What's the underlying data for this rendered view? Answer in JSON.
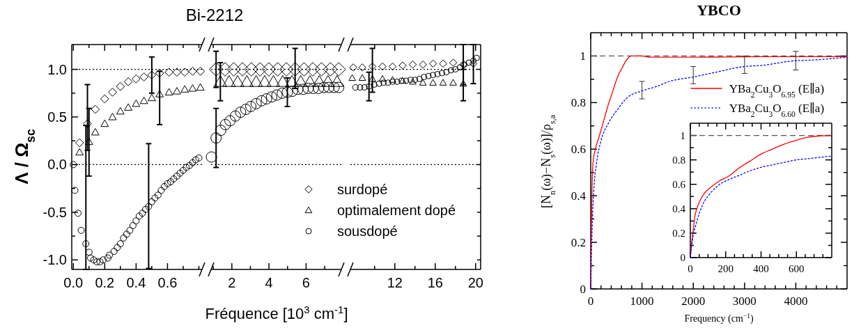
{
  "chart_data": [
    {
      "type": "scatter",
      "title": "Bi-2212",
      "xlabel": "Fréquence  [10$^{3}$ cm$^{-1}$]",
      "ylabel": "Λ / Ω$_{sc}$",
      "xlim": [
        -0.01,
        0.82
      ],
      "xticks": [
        {
          "value": 0,
          "label": "0.0"
        },
        {
          "value": 0.1,
          "label": null
        },
        {
          "value": 0.2,
          "label": "0.2"
        },
        {
          "value": 0.3,
          "label": null
        },
        {
          "value": 0.4,
          "label": "0.4"
        },
        {
          "value": 0.5,
          "label": null
        },
        {
          "value": 0.6,
          "label": "0.6"
        },
        {
          "value": 0.7,
          "label": null
        },
        {
          "value": 0.8,
          "label": null
        }
      ],
      "ylim": [
        -1.1,
        1.26
      ],
      "yticks": [
        {
          "value": -1,
          "label": "-1.0"
        },
        {
          "value": -0.75,
          "label": null
        },
        {
          "value": -0.5,
          "label": "-0.5"
        },
        {
          "value": -0.25,
          "label": null
        },
        {
          "value": 0,
          "label": "0.0"
        },
        {
          "value": 0.25,
          "label": null
        },
        {
          "value": 0.5,
          "label": "0.5"
        },
        {
          "value": 0.75,
          "label": null
        },
        {
          "value": 1,
          "label": "1.0"
        }
      ],
      "ref_lines": [
        {
          "axis": "y",
          "value": 1,
          "color": "#000000",
          "line_style": "dotted"
        },
        {
          "axis": "y",
          "value": 0,
          "color": "#000000",
          "line_style": "dotted"
        }
      ],
      "series": [
        {
          "color": "#000000",
          "marker": "diamond",
          "x": [
            0.04,
            0.09,
            0.14,
            0.2,
            0.25,
            0.3,
            0.35,
            0.4,
            0.45,
            0.5,
            0.55,
            0.61,
            0.66,
            0.71,
            0.76,
            0.81
          ],
          "values": [
            0.23,
            0.43,
            0.58,
            0.69,
            0.76,
            0.82,
            0.87,
            0.9,
            0.92,
            0.94,
            0.96,
            0.97,
            0.97,
            0.97,
            0.98,
            0.98
          ],
          "errors": [
            null,
            [
              0.15,
              0.84
            ],
            null,
            null,
            null,
            null,
            null,
            null,
            null,
            [
              0.75,
              1.13
            ],
            null,
            null,
            null,
            null,
            null,
            null
          ]
        },
        {
          "color": "#000000",
          "marker": "triangle",
          "x": [
            0.04,
            0.1,
            0.14,
            0.2,
            0.25,
            0.3,
            0.35,
            0.4,
            0.45,
            0.5,
            0.55,
            0.61,
            0.66,
            0.71,
            0.76,
            0.81
          ],
          "values": [
            0.13,
            0.24,
            0.34,
            0.43,
            0.5,
            0.56,
            0.6,
            0.64,
            0.67,
            0.7,
            0.74,
            0.76,
            0.77,
            0.79,
            0.8,
            0.81
          ],
          "errors": [
            null,
            [
              -0.12,
              0.59
            ],
            null,
            null,
            null,
            null,
            null,
            null,
            null,
            null,
            [
              0.42,
              0.98
            ],
            null,
            null,
            null,
            null,
            null
          ]
        },
        {
          "color": "#000000",
          "marker": "circle",
          "x": [
            0,
            0.01,
            0.03,
            0.05,
            0.08,
            0.1,
            0.11,
            0.13,
            0.15,
            0.17,
            0.19,
            0.22,
            0.23,
            0.26,
            0.28,
            0.3,
            0.32,
            0.34,
            0.36,
            0.38,
            0.4,
            0.42,
            0.44,
            0.46,
            0.48,
            0.5,
            0.52,
            0.54,
            0.56,
            0.58,
            0.6,
            0.62,
            0.64,
            0.66,
            0.68,
            0.7,
            0.72,
            0.74,
            0.76,
            0.78,
            0.8
          ],
          "values": [
            0,
            -0.27,
            -0.51,
            -0.69,
            -0.83,
            -0.92,
            -0.98,
            -1.0,
            -1.02,
            -1.02,
            -1.0,
            -0.98,
            -0.95,
            -0.91,
            -0.87,
            -0.83,
            -0.77,
            -0.73,
            -0.69,
            -0.64,
            -0.59,
            -0.54,
            -0.51,
            -0.47,
            -0.44,
            -0.39,
            -0.35,
            -0.32,
            -0.27,
            -0.23,
            -0.2,
            -0.18,
            -0.15,
            -0.12,
            -0.09,
            -0.06,
            -0.03,
            -0.01,
            0.02,
            0.05,
            0.07
          ],
          "errors": [
            null,
            null,
            null,
            null,
            [
              -1.1,
              0.41
            ],
            null,
            null,
            null,
            null,
            null,
            null,
            null,
            null,
            null,
            null,
            null,
            null,
            null,
            null,
            null,
            null,
            null,
            null,
            null,
            [
              -1.09,
              0.22
            ],
            null,
            null,
            null,
            null,
            null,
            null,
            null,
            null,
            null,
            null,
            null,
            null,
            null,
            null,
            null,
            null
          ]
        }
      ]
    },
    {
      "type": "scatter",
      "tick_labels": "x",
      "legend": "bottom right",
      "xlim": [
        0.88,
        7.9
      ],
      "xticks": [
        {
          "value": 1,
          "label": null
        },
        2,
        {
          "value": 3,
          "label": null
        },
        4,
        {
          "value": 5,
          "label": null
        },
        6,
        {
          "value": 7,
          "label": null
        }
      ],
      "ylim": [
        -1.1,
        1.26
      ],
      "ref_lines": [
        {
          "axis": "y",
          "value": 1,
          "color": "#000000",
          "line_style": "dotted"
        },
        {
          "axis": "y",
          "value": 0,
          "color": "#000000",
          "line_style": "dotted"
        }
      ],
      "series": [
        {
          "name": "surdopé",
          "color": "#000000",
          "marker": "diamond",
          "x": [
            1.15,
            1.63,
            2.1,
            2.57,
            3.05,
            3.52,
            3.99,
            4.47,
            4.94,
            5.41,
            5.89,
            6.36,
            6.83,
            7.31,
            7.76
          ],
          "values": [
            1.0,
            1.0,
            1.0,
            1.0,
            1.0,
            1.0,
            1.0,
            1.0,
            1.0,
            1.0,
            1.0,
            1.0,
            1.0,
            1.0,
            1.0
          ],
          "errors": [
            0.19,
            null,
            null,
            null,
            null,
            null,
            null,
            null,
            null,
            [
              0.8,
              1.22
            ],
            null,
            null,
            null,
            null,
            null
          ]
        },
        {
          "name": "optimalement dopé",
          "color": "#000000",
          "marker": "triangle",
          "x": [
            1.38,
            1.85,
            2.31,
            2.81,
            3.31,
            3.77,
            4.24,
            4.74,
            5.24,
            5.71,
            6.21,
            6.71,
            7.18,
            7.67
          ],
          "values": [
            0.87,
            0.87,
            0.87,
            0.87,
            0.87,
            0.87,
            0.87,
            0.87,
            0.87,
            0.87,
            0.87,
            0.87,
            0.87,
            0.87
          ],
          "errors": [
            [
              0.67,
              1.07
            ],
            null,
            null,
            null,
            null,
            null,
            null,
            null,
            null,
            null,
            null,
            null,
            null,
            null
          ]
        },
        {
          "name": "sousdopé",
          "color": "#000000",
          "marker": "circle",
          "x": [
            0.9,
            1.15,
            1.4,
            1.65,
            1.9,
            2.19,
            2.47,
            2.75,
            3.02,
            3.31,
            3.6,
            3.87,
            4.14,
            4.43,
            4.72,
            4.99,
            5.26,
            5.55,
            5.84,
            6.11,
            6.39,
            6.67,
            6.96,
            7.23,
            7.51,
            7.76
          ],
          "values": [
            0.08,
            0.28,
            0.36,
            0.42,
            0.46,
            0.51,
            0.55,
            0.58,
            0.61,
            0.64,
            0.67,
            0.69,
            0.71,
            0.73,
            0.75,
            0.76,
            0.77,
            0.79,
            0.79,
            0.8,
            0.8,
            0.8,
            0.81,
            0.81,
            0.81,
            0.81
          ],
          "errors": [
            null,
            0.31,
            null,
            null,
            null,
            null,
            null,
            null,
            null,
            null,
            null,
            null,
            null,
            null,
            null,
            0.15,
            null,
            null,
            null,
            null,
            null,
            null,
            null,
            null,
            null,
            null
          ]
        }
      ]
    },
    {
      "type": "scatter",
      "tick_labels": "x",
      "xlim": [
        7.6,
        20.5
      ],
      "xticks": [
        {
          "value": 10,
          "label": null
        },
        12,
        {
          "value": 14,
          "label": null
        },
        16,
        {
          "value": 18,
          "label": null
        },
        20
      ],
      "ylim": [
        -1.1,
        1.26
      ],
      "yticks": [
        {
          "value": -1,
          "label": null
        },
        {
          "value": -0.75,
          "label": null
        },
        {
          "value": -0.5,
          "label": null
        },
        {
          "value": -0.25,
          "label": null
        },
        {
          "value": 0,
          "label": null
        },
        {
          "value": 0.25,
          "label": null
        },
        {
          "value": 0.5,
          "label": null
        },
        {
          "value": 0.75,
          "label": null
        },
        {
          "value": 1,
          "label": null
        }
      ],
      "ref_lines": [
        {
          "axis": "y",
          "value": 1,
          "color": "#000000",
          "line_style": "dotted"
        },
        {
          "axis": "y",
          "value": 0,
          "color": "#000000",
          "line_style": "dotted"
        }
      ],
      "series": [
        {
          "color": "#000000",
          "marker": "diamond",
          "x": [
            7.89,
            8.78,
            9.78,
            10.78,
            11.78,
            12.78,
            13.78,
            14.78,
            15.78,
            16.78,
            17.78,
            18.78,
            19.78
          ],
          "values": [
            1.02,
            1.02,
            1.03,
            1.03,
            1.03,
            1.04,
            1.05,
            1.05,
            1.06,
            1.06,
            1.07,
            1.05,
            1.06
          ],
          "errors": [
            null,
            null,
            [
              0.76,
              1.22
            ],
            null,
            null,
            null,
            null,
            null,
            null,
            null,
            null,
            0.21,
            null
          ]
        },
        {
          "color": "#000000",
          "marker": "triangle",
          "x": [
            7.78,
            8.78,
            9.78,
            10.78,
            11.78,
            12.78,
            13.78,
            14.78,
            15.78,
            16.78,
            17.78,
            18.78
          ],
          "values": [
            0.91,
            0.91,
            0.9,
            0.9,
            0.89,
            0.88,
            0.87,
            0.86,
            0.86,
            0.86,
            0.86,
            0.85
          ],
          "errors": [
            null,
            null,
            null,
            null,
            null,
            null,
            null,
            null,
            null,
            null,
            null,
            [
              0.67,
              1.0
            ]
          ]
        },
        {
          "color": "#000000",
          "marker": "circle",
          "x": [
            8.11,
            8.56,
            9.0,
            9.44,
            9.96,
            10.44,
            10.89,
            11.33,
            11.78,
            12.22,
            12.67,
            13.11,
            13.56,
            14.0,
            14.44,
            14.89,
            15.33,
            15.78,
            16.22,
            16.67,
            17.11,
            17.56,
            18.0,
            18.44,
            18.89,
            19.33,
            19.78,
            20.11
          ],
          "values": [
            0.81,
            0.81,
            0.81,
            0.82,
            0.84,
            0.85,
            0.86,
            0.86,
            0.87,
            0.87,
            0.88,
            0.88,
            0.89,
            0.89,
            0.9,
            0.92,
            0.93,
            0.94,
            0.95,
            0.96,
            0.97,
            0.99,
            1.0,
            1.02,
            1.05,
            1.07,
            1.09,
            1.12
          ],
          "errors": [
            null,
            null,
            null,
            0.15,
            null,
            null,
            null,
            null,
            null,
            null,
            null,
            null,
            null,
            null,
            null,
            null,
            null,
            null,
            null,
            null,
            null,
            null,
            null,
            null,
            null,
            null,
            [
              0.85,
              1.26
            ],
            null
          ]
        }
      ]
    },
    {
      "type": "line",
      "title": "YBCO",
      "xlabel": "Frequency (cm$^{−1}$)",
      "ylabel": "[N$_{n}$(ω)−N$_{s}$(ω)]/ρ$_{s,a}$",
      "legend": "top right",
      "xlim": [
        0,
        5000
      ],
      "xticks": [
        0,
        {
          "value": 200,
          "label": null
        },
        {
          "value": 400,
          "label": null
        },
        {
          "value": 600,
          "label": null
        },
        {
          "value": 800,
          "label": null
        },
        1000,
        {
          "value": 1200,
          "label": null
        },
        {
          "value": 1400,
          "label": null
        },
        {
          "value": 1600,
          "label": null
        },
        {
          "value": 1800,
          "label": null
        },
        2000,
        {
          "value": 2200,
          "label": null
        },
        {
          "value": 2400,
          "label": null
        },
        {
          "value": 2600,
          "label": null
        },
        {
          "value": 2800,
          "label": null
        },
        3000,
        {
          "value": 3200,
          "label": null
        },
        {
          "value": 3400,
          "label": null
        },
        {
          "value": 3600,
          "label": null
        },
        {
          "value": 3800,
          "label": null
        },
        4000,
        {
          "value": 4200,
          "label": null
        },
        {
          "value": 4400,
          "label": null
        },
        {
          "value": 4600,
          "label": null
        },
        {
          "value": 4800,
          "label": null
        }
      ],
      "ylim": [
        0,
        1.1
      ],
      "yticks": [
        0,
        {
          "value": 0.1,
          "label": null
        },
        0.2,
        {
          "value": 0.3,
          "label": null
        },
        0.4,
        {
          "value": 0.5,
          "label": null
        },
        0.6,
        {
          "value": 0.7,
          "label": null
        },
        0.8,
        {
          "value": 0.9,
          "label": null
        },
        1
      ],
      "ref_lines": [
        {
          "axis": "y",
          "value": 1,
          "color": "#555555",
          "line_style": "dashed"
        }
      ],
      "series": [
        {
          "name": "YBa$_{2}$Cu$_{3}$O$_{6.95}$ (E∥a)",
          "color": "#ff0000",
          "line_style": "solid",
          "marker": "none",
          "x": [
            0,
            9,
            23,
            45,
            91,
            159,
            250,
            341,
            432,
            523,
            614,
            705,
            795,
            1000,
            1159,
            1977,
            3341,
            5000
          ],
          "values": [
            0,
            0.19,
            0.4,
            0.54,
            0.6,
            0.65,
            0.72,
            0.79,
            0.85,
            0.91,
            0.95,
            0.985,
            1.0,
            1.0,
            0.995,
            0.995,
            0.997,
            0.997
          ]
        },
        {
          "name": "YBa$_{2}$Cu$_{3}$O$_{6.60}$ (E∥a)",
          "color": "#0000ff",
          "line_style": "dotted",
          "marker": "none",
          "x": [
            0,
            14,
            32,
            59,
            114,
            205,
            341,
            523,
            705,
            1000,
            1295,
            1523,
            2000,
            2432,
            3000,
            3341,
            4000,
            4250,
            5000
          ],
          "values": [
            0,
            0.14,
            0.29,
            0.42,
            0.54,
            0.64,
            0.71,
            0.77,
            0.82,
            0.85,
            0.87,
            0.89,
            0.91,
            0.93,
            0.955,
            0.96,
            0.98,
            0.982,
            0.995
          ],
          "errors": [
            null,
            null,
            null,
            null,
            null,
            null,
            null,
            null,
            null,
            [
              0.816,
              0.891
            ],
            null,
            null,
            [
              0.881,
              0.955
            ],
            null,
            [
              0.925,
              1.0
            ],
            null,
            [
              0.94,
              1.02
            ],
            null,
            null
          ]
        }
      ]
    },
    {
      "type": "line",
      "xlim": [
        0,
        800
      ],
      "xticks": [
        0,
        {
          "value": 50,
          "label": null
        },
        {
          "value": 100,
          "label": null
        },
        {
          "value": 150,
          "label": null
        },
        200,
        {
          "value": 250,
          "label": null
        },
        {
          "value": 300,
          "label": null
        },
        {
          "value": 350,
          "label": null
        },
        400,
        {
          "value": 450,
          "label": null
        },
        {
          "value": 500,
          "label": null
        },
        {
          "value": 550,
          "label": null
        },
        600,
        {
          "value": 650,
          "label": null
        },
        {
          "value": 700,
          "label": null
        },
        {
          "value": 750,
          "label": null
        }
      ],
      "ylim": [
        0,
        1.1
      ],
      "yticks": [
        0,
        {
          "value": 0.1,
          "label": null
        },
        0.2,
        {
          "value": 0.3,
          "label": null
        },
        0.4,
        {
          "value": 0.5,
          "label": null
        },
        0.6,
        {
          "value": 0.7,
          "label": null
        },
        0.8,
        {
          "value": 0.9,
          "label": null
        },
        1
      ],
      "ref_lines": [
        {
          "axis": "y",
          "value": 1,
          "color": "#555555",
          "line_style": "dashed"
        }
      ],
      "series": [
        {
          "color": "#ff0000",
          "line_style": "solid",
          "marker": "none",
          "x": [
            0,
            10,
            18,
            26,
            37,
            56,
            76,
            102,
            128,
            167,
            220,
            272,
            337,
            403,
            468,
            533,
            599,
            664,
            729,
            795
          ],
          "values": [
            0,
            0.15,
            0.24,
            0.34,
            0.4,
            0.47,
            0.52,
            0.56,
            0.59,
            0.63,
            0.67,
            0.73,
            0.79,
            0.85,
            0.89,
            0.93,
            0.96,
            0.985,
            0.996,
            1.0
          ]
        },
        {
          "color": "#0000ff",
          "line_style": "dotted",
          "marker": "none",
          "x": [
            0,
            8,
            17,
            30,
            50,
            76,
            115,
            167,
            220,
            272,
            337,
            403,
            468,
            533,
            599,
            664,
            729,
            795
          ],
          "values": [
            0,
            0.1,
            0.19,
            0.26,
            0.36,
            0.45,
            0.53,
            0.6,
            0.64,
            0.67,
            0.71,
            0.74,
            0.76,
            0.78,
            0.8,
            0.81,
            0.82,
            0.83
          ]
        }
      ]
    }
  ]
}
